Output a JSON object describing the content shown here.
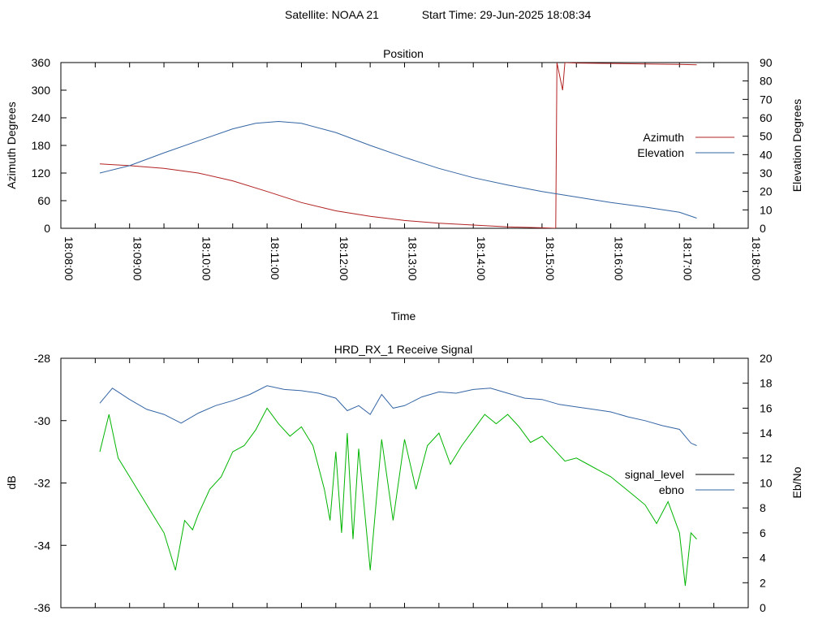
{
  "page": {
    "satellite_label": "Satellite: NOAA 21",
    "start_time_label": "Start Time: 29-Jun-2025 18:08:34"
  },
  "chart_data": [
    {
      "type": "line",
      "title": "Position",
      "xlabel": "Time",
      "ylabel": "Azimuth Degrees",
      "y2label": "Elevation Degrees",
      "x_ticks": [
        "18:08:00",
        "18:09:00",
        "18:10:00",
        "18:11:00",
        "18:12:00",
        "18:13:00",
        "18:14:00",
        "18:15:00",
        "18:16:00",
        "18:17:00",
        "18:18:00"
      ],
      "xlim": [
        "18:08:00",
        "18:18:00"
      ],
      "ylim": [
        0,
        360
      ],
      "y_ticks": [
        0,
        60,
        120,
        180,
        240,
        300,
        360
      ],
      "y2lim": [
        0,
        90
      ],
      "y2_ticks": [
        0,
        10,
        20,
        30,
        40,
        50,
        60,
        70,
        80,
        90
      ],
      "legend_position": "right",
      "series": [
        {
          "name": "Azimuth",
          "axis": "y",
          "color": "#b22222",
          "x": [
            "18:08:34",
            "18:09:00",
            "18:09:30",
            "18:10:00",
            "18:10:30",
            "18:11:00",
            "18:11:30",
            "18:12:00",
            "18:12:30",
            "18:13:00",
            "18:13:30",
            "18:14:00",
            "18:14:30",
            "18:15:00",
            "18:15:12",
            "18:15:13",
            "18:15:18",
            "18:15:20",
            "18:15:30",
            "18:16:00",
            "18:16:30",
            "18:17:00",
            "18:17:15"
          ],
          "values": [
            140,
            136,
            130,
            120,
            103,
            80,
            56,
            38,
            26,
            17,
            11,
            7,
            3,
            1,
            0,
            360,
            300,
            360,
            359,
            358,
            357,
            356,
            355
          ]
        },
        {
          "name": "Elevation",
          "axis": "y2",
          "color": "#3465a4",
          "x": [
            "18:08:34",
            "18:09:00",
            "18:09:30",
            "18:10:00",
            "18:10:30",
            "18:10:50",
            "18:11:10",
            "18:11:30",
            "18:12:00",
            "18:12:30",
            "18:13:00",
            "18:13:30",
            "18:14:00",
            "18:14:30",
            "18:15:00",
            "18:15:30",
            "18:16:00",
            "18:16:30",
            "18:17:00",
            "18:17:15"
          ],
          "values": [
            30,
            34,
            41,
            47.5,
            54,
            57,
            58,
            57,
            52,
            45,
            38.5,
            32.5,
            27.5,
            23.5,
            20,
            17,
            14,
            11.5,
            8.7,
            5.5
          ]
        }
      ]
    },
    {
      "type": "line",
      "title": "HRD_RX_1 Receive Signal",
      "ylabel": "dB",
      "y2label": "Eb/No",
      "xlim": [
        "18:08:00",
        "18:18:00"
      ],
      "ylim": [
        -36,
        -28
      ],
      "y_ticks": [
        -36,
        -34,
        -32,
        -30,
        -28
      ],
      "y2lim": [
        0,
        20
      ],
      "y2_ticks": [
        0,
        2,
        4,
        6,
        8,
        10,
        12,
        14,
        16,
        18,
        20
      ],
      "legend_position": "right",
      "series": [
        {
          "name": "signal_level",
          "axis": "y",
          "color": "#00b400",
          "legend_color": "#000000",
          "x": [
            "18:08:34",
            "18:08:42",
            "18:08:50",
            "18:09:00",
            "18:09:10",
            "18:09:20",
            "18:09:30",
            "18:09:40",
            "18:09:48",
            "18:09:55",
            "18:10:00",
            "18:10:10",
            "18:10:20",
            "18:10:30",
            "18:10:40",
            "18:10:50",
            "18:11:00",
            "18:11:10",
            "18:11:20",
            "18:11:30",
            "18:11:40",
            "18:11:50",
            "18:11:55",
            "18:12:00",
            "18:12:05",
            "18:12:10",
            "18:12:15",
            "18:12:20",
            "18:12:30",
            "18:12:40",
            "18:12:50",
            "18:13:00",
            "18:13:10",
            "18:13:20",
            "18:13:30",
            "18:13:40",
            "18:13:50",
            "18:14:00",
            "18:14:10",
            "18:14:20",
            "18:14:30",
            "18:14:40",
            "18:14:50",
            "18:15:00",
            "18:15:10",
            "18:15:20",
            "18:15:30",
            "18:15:40",
            "18:15:50",
            "18:16:00",
            "18:16:10",
            "18:16:20",
            "18:16:30",
            "18:16:40",
            "18:16:50",
            "18:17:00",
            "18:17:05",
            "18:17:10",
            "18:17:15"
          ],
          "values": [
            -31,
            -29.8,
            -31.2,
            -31.8,
            -32.4,
            -33,
            -33.6,
            -34.8,
            -33.2,
            -33.5,
            -33,
            -32.2,
            -31.8,
            -31,
            -30.8,
            -30.3,
            -29.6,
            -30.1,
            -30.5,
            -30.2,
            -30.8,
            -32.2,
            -33.2,
            -31,
            -33.6,
            -30.4,
            -33.8,
            -30.9,
            -34.8,
            -30.6,
            -33.2,
            -30.6,
            -32.2,
            -30.8,
            -30.4,
            -31.4,
            -30.8,
            -30.3,
            -29.8,
            -30.1,
            -29.8,
            -30.2,
            -30.7,
            -30.5,
            -30.9,
            -31.3,
            -31.2,
            -31.4,
            -31.6,
            -31.8,
            -32.1,
            -32.4,
            -32.7,
            -33.3,
            -32.6,
            -33.6,
            -35.3,
            -33.6,
            -33.8
          ]
        },
        {
          "name": "ebno",
          "axis": "y2",
          "color": "#3465a4",
          "x": [
            "18:08:34",
            "18:08:45",
            "18:09:00",
            "18:09:15",
            "18:09:30",
            "18:09:45",
            "18:10:00",
            "18:10:15",
            "18:10:30",
            "18:10:45",
            "18:11:00",
            "18:11:15",
            "18:11:30",
            "18:11:45",
            "18:12:00",
            "18:12:10",
            "18:12:20",
            "18:12:30",
            "18:12:40",
            "18:12:50",
            "18:13:00",
            "18:13:15",
            "18:13:30",
            "18:13:45",
            "18:14:00",
            "18:14:15",
            "18:14:30",
            "18:14:45",
            "18:15:00",
            "18:15:15",
            "18:15:30",
            "18:15:45",
            "18:16:00",
            "18:16:15",
            "18:16:30",
            "18:16:45",
            "18:17:00",
            "18:17:10",
            "18:17:15"
          ],
          "values": [
            16.4,
            17.6,
            16.7,
            15.9,
            15.5,
            14.8,
            15.6,
            16.2,
            16.6,
            17.1,
            17.8,
            17.5,
            17.4,
            17.2,
            16.8,
            15.8,
            16.2,
            15.5,
            17.1,
            16,
            16.2,
            16.9,
            17.3,
            17.2,
            17.5,
            17.6,
            17.2,
            16.8,
            16.7,
            16.3,
            16.1,
            15.9,
            15.7,
            15.3,
            15,
            14.6,
            14.3,
            13.2,
            13
          ]
        }
      ]
    }
  ]
}
